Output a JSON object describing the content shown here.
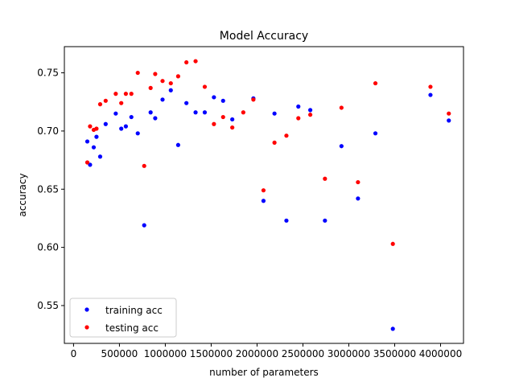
{
  "chart_data": {
    "type": "scatter",
    "title": "Model Accuracy",
    "xlabel": "number of parameters",
    "ylabel": "accuracy",
    "xlim": [
      -100000,
      4250000
    ],
    "ylim": [
      0.5175,
      0.7725
    ],
    "xticks": [
      0,
      500000,
      1000000,
      1500000,
      2000000,
      2500000,
      3000000,
      3500000,
      4000000
    ],
    "xtick_labels": [
      "0",
      "500000",
      "1000000",
      "1500000",
      "2000000",
      "2500000",
      "3000000",
      "3500000",
      "4000000"
    ],
    "yticks": [
      0.55,
      0.6,
      0.65,
      0.7,
      0.75
    ],
    "ytick_labels": [
      "0.55",
      "0.60",
      "0.65",
      "0.70",
      "0.75"
    ],
    "grid": false,
    "legend_position": "lower left",
    "series": [
      {
        "name": "training acc",
        "color": "#0000ff",
        "points": [
          [
            150000,
            0.691
          ],
          [
            180000,
            0.671
          ],
          [
            220000,
            0.686
          ],
          [
            250000,
            0.695
          ],
          [
            290000,
            0.678
          ],
          [
            350000,
            0.706
          ],
          [
            460000,
            0.715
          ],
          [
            520000,
            0.702
          ],
          [
            570000,
            0.704
          ],
          [
            630000,
            0.712
          ],
          [
            700000,
            0.698
          ],
          [
            770000,
            0.619
          ],
          [
            840000,
            0.716
          ],
          [
            890000,
            0.711
          ],
          [
            970000,
            0.727
          ],
          [
            1060000,
            0.735
          ],
          [
            1140000,
            0.688
          ],
          [
            1230000,
            0.724
          ],
          [
            1330000,
            0.716
          ],
          [
            1430000,
            0.716
          ],
          [
            1530000,
            0.729
          ],
          [
            1630000,
            0.726
          ],
          [
            1730000,
            0.71
          ],
          [
            1960000,
            0.728
          ],
          [
            2070000,
            0.64
          ],
          [
            2190000,
            0.715
          ],
          [
            2320000,
            0.623
          ],
          [
            2450000,
            0.721
          ],
          [
            2580000,
            0.718
          ],
          [
            2740000,
            0.623
          ],
          [
            2920000,
            0.687
          ],
          [
            3100000,
            0.642
          ],
          [
            3290000,
            0.698
          ],
          [
            3480000,
            0.53
          ],
          [
            3890000,
            0.731
          ],
          [
            4090000,
            0.709
          ]
        ]
      },
      {
        "name": "testing acc",
        "color": "#ff0000",
        "points": [
          [
            150000,
            0.673
          ],
          [
            180000,
            0.704
          ],
          [
            220000,
            0.701
          ],
          [
            250000,
            0.702
          ],
          [
            290000,
            0.723
          ],
          [
            350000,
            0.726
          ],
          [
            460000,
            0.732
          ],
          [
            520000,
            0.724
          ],
          [
            570000,
            0.732
          ],
          [
            630000,
            0.732
          ],
          [
            700000,
            0.75
          ],
          [
            770000,
            0.67
          ],
          [
            840000,
            0.737
          ],
          [
            890000,
            0.749
          ],
          [
            970000,
            0.743
          ],
          [
            1060000,
            0.741
          ],
          [
            1140000,
            0.747
          ],
          [
            1230000,
            0.759
          ],
          [
            1330000,
            0.76
          ],
          [
            1430000,
            0.738
          ],
          [
            1530000,
            0.706
          ],
          [
            1630000,
            0.712
          ],
          [
            1730000,
            0.703
          ],
          [
            1850000,
            0.716
          ],
          [
            1960000,
            0.727
          ],
          [
            2070000,
            0.649
          ],
          [
            2190000,
            0.69
          ],
          [
            2320000,
            0.696
          ],
          [
            2450000,
            0.711
          ],
          [
            2580000,
            0.714
          ],
          [
            2740000,
            0.659
          ],
          [
            2920000,
            0.72
          ],
          [
            3100000,
            0.656
          ],
          [
            3290000,
            0.741
          ],
          [
            3480000,
            0.603
          ],
          [
            3890000,
            0.738
          ],
          [
            4090000,
            0.715
          ]
        ]
      }
    ]
  }
}
